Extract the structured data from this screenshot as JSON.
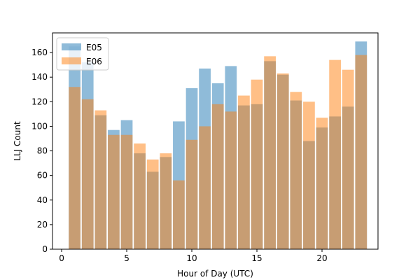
{
  "chart_data": {
    "type": "bar",
    "title": "",
    "xlabel": "Hour of Day (UTC)",
    "ylabel": "LLJ Count",
    "xlim": [
      -0.7,
      24.3
    ],
    "ylim": [
      0,
      176
    ],
    "xticks": [
      0,
      5,
      10,
      15,
      20
    ],
    "yticks": [
      0,
      20,
      40,
      60,
      80,
      100,
      120,
      140,
      160
    ],
    "grid": false,
    "legend_position": "top-left",
    "x": [
      1,
      2,
      3,
      4,
      5,
      6,
      7,
      8,
      9,
      10,
      11,
      12,
      13,
      14,
      15,
      16,
      17,
      18,
      19,
      20,
      21,
      22,
      23
    ],
    "series": [
      {
        "name": "E05",
        "color": "#1f77b4",
        "values": [
          165,
          152,
          109,
          97,
          105,
          78,
          63,
          75,
          104,
          131,
          147,
          135,
          149,
          117,
          118,
          153,
          142,
          121,
          88,
          99,
          108,
          116,
          169
        ]
      },
      {
        "name": "E06",
        "color": "#ff7f0e",
        "values": [
          132,
          122,
          113,
          93,
          93,
          86,
          73,
          78,
          56,
          89,
          100,
          118,
          112,
          125,
          138,
          157,
          143,
          128,
          120,
          107,
          154,
          146,
          158
        ]
      }
    ]
  }
}
